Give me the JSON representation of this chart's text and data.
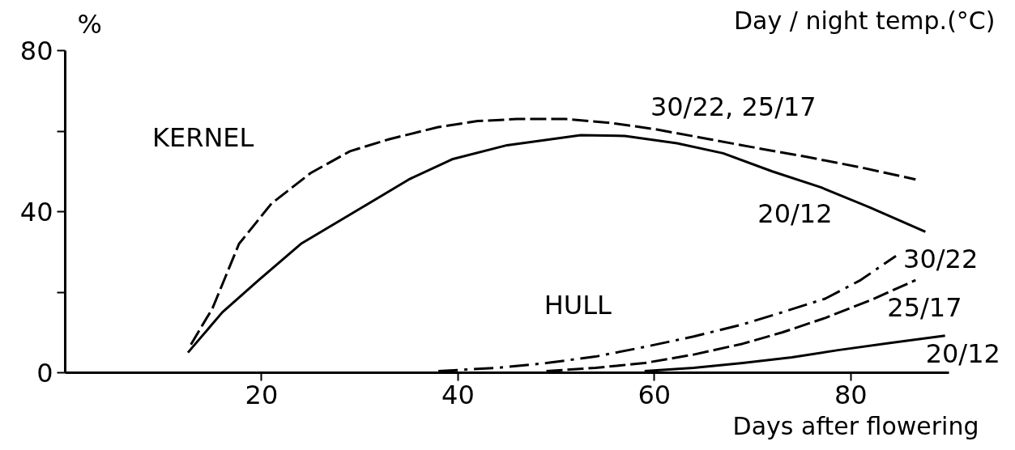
{
  "chart_data": {
    "type": "line",
    "legend_title": "Day / night temp.(°C)",
    "ylabel": "%",
    "xlabel": "Days after flowering",
    "xlim": [
      0,
      90
    ],
    "xticks": [
      20,
      40,
      60,
      80
    ],
    "ylim": [
      0,
      80
    ],
    "yticks": [
      0,
      {
        "value": 20,
        "label": null
      },
      40,
      {
        "value": 60,
        "label": null
      },
      80
    ],
    "grid": false,
    "marker": "none",
    "series": [
      {
        "name": "30/22, 25/17",
        "color": "#000000",
        "line_style": "dashed",
        "x": [
          12.8,
          15,
          17.7,
          21,
          25,
          29,
          33,
          38,
          42,
          46,
          51,
          55.7,
          60,
          65.6,
          70,
          75.5,
          81,
          86.6
        ],
        "values": [
          7,
          16,
          32,
          42,
          49.6,
          55,
          58,
          61,
          62.5,
          63,
          63,
          62,
          60.5,
          58,
          56,
          53.6,
          51,
          48
        ]
      },
      {
        "name": "20/12",
        "color": "#000000",
        "line_style": "solid",
        "x": [
          12.5,
          16,
          19.7,
          24,
          30.2,
          35,
          39.4,
          45,
          52.5,
          57,
          62.3,
          67,
          72,
          77,
          82,
          87.6
        ],
        "values": [
          5,
          15,
          23,
          32,
          41,
          48,
          53,
          56.5,
          59,
          58.8,
          57,
          54.5,
          50,
          46,
          41,
          35
        ]
      },
      {
        "name": "30/22",
        "color": "#000000",
        "line_style": "dashdot",
        "x": [
          38,
          44,
          49,
          54,
          59,
          64,
          69,
          73,
          77.4,
          81,
          84.6
        ],
        "values": [
          0.4,
          1.2,
          2.4,
          4,
          6.4,
          9,
          12,
          15,
          18.4,
          23,
          29
        ]
      },
      {
        "name": "25/17",
        "color": "#000000",
        "line_style": "dashed",
        "x": [
          49,
          54,
          59,
          64,
          69,
          73,
          77.4,
          82,
          86.6
        ],
        "values": [
          0.4,
          1.2,
          2.4,
          4.5,
          7.2,
          10,
          13.6,
          18,
          23
        ]
      },
      {
        "name": "20/12",
        "color": "#000000",
        "line_style": "solid",
        "x": [
          59,
          64,
          69,
          74,
          78.7,
          84,
          89.6
        ],
        "values": [
          0.4,
          1.2,
          2.4,
          3.8,
          5.6,
          7.4,
          9.2
        ]
      }
    ],
    "annotations": [
      "KERNEL",
      "HULL"
    ]
  }
}
